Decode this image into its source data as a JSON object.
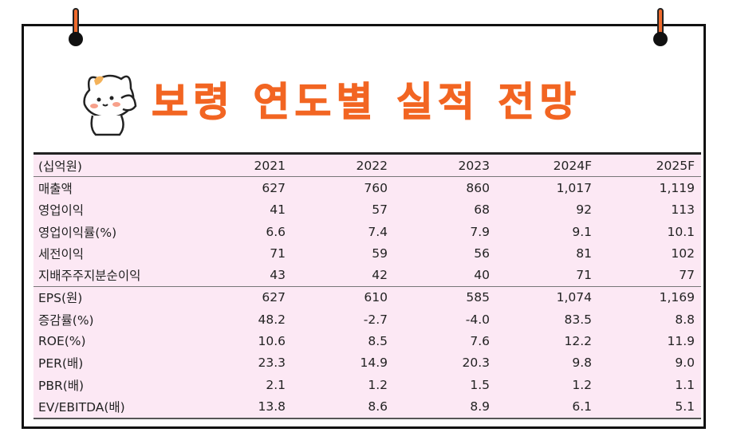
{
  "title": "보령 연도별 실적 전망",
  "table": {
    "header": [
      "(십억원)",
      "2021",
      "2022",
      "2023",
      "2024F",
      "2025F"
    ],
    "rows": [
      [
        "매출액",
        "627",
        "760",
        "860",
        "1,017",
        "1,119"
      ],
      [
        "영업이익",
        "41",
        "57",
        "68",
        "92",
        "113"
      ],
      [
        "영업이익률(%)",
        "6.6",
        "7.4",
        "7.9",
        "9.1",
        "10.1"
      ],
      [
        "세전이익",
        "71",
        "59",
        "56",
        "81",
        "102"
      ],
      [
        "지배주주지분순이익",
        "43",
        "42",
        "40",
        "71",
        "77"
      ],
      [
        "EPS(원)",
        "627",
        "610",
        "585",
        "1,074",
        "1,169"
      ],
      [
        "증감률(%)",
        "48.2",
        "-2.7",
        "-4.0",
        "83.5",
        "8.8"
      ],
      [
        "ROE(%)",
        "10.6",
        "8.5",
        "7.6",
        "12.2",
        "11.9"
      ],
      [
        "PER(배)",
        "23.3",
        "14.9",
        "20.3",
        "9.8",
        "9.0"
      ],
      [
        "PBR(배)",
        "2.1",
        "1.2",
        "1.5",
        "1.2",
        "1.1"
      ],
      [
        "EV/EBITDA(배)",
        "13.8",
        "8.6",
        "8.9",
        "6.1",
        "5.1"
      ]
    ]
  },
  "colors": {
    "accent": "#f26522",
    "table_bg": "#fce8f4",
    "border": "#111111"
  }
}
